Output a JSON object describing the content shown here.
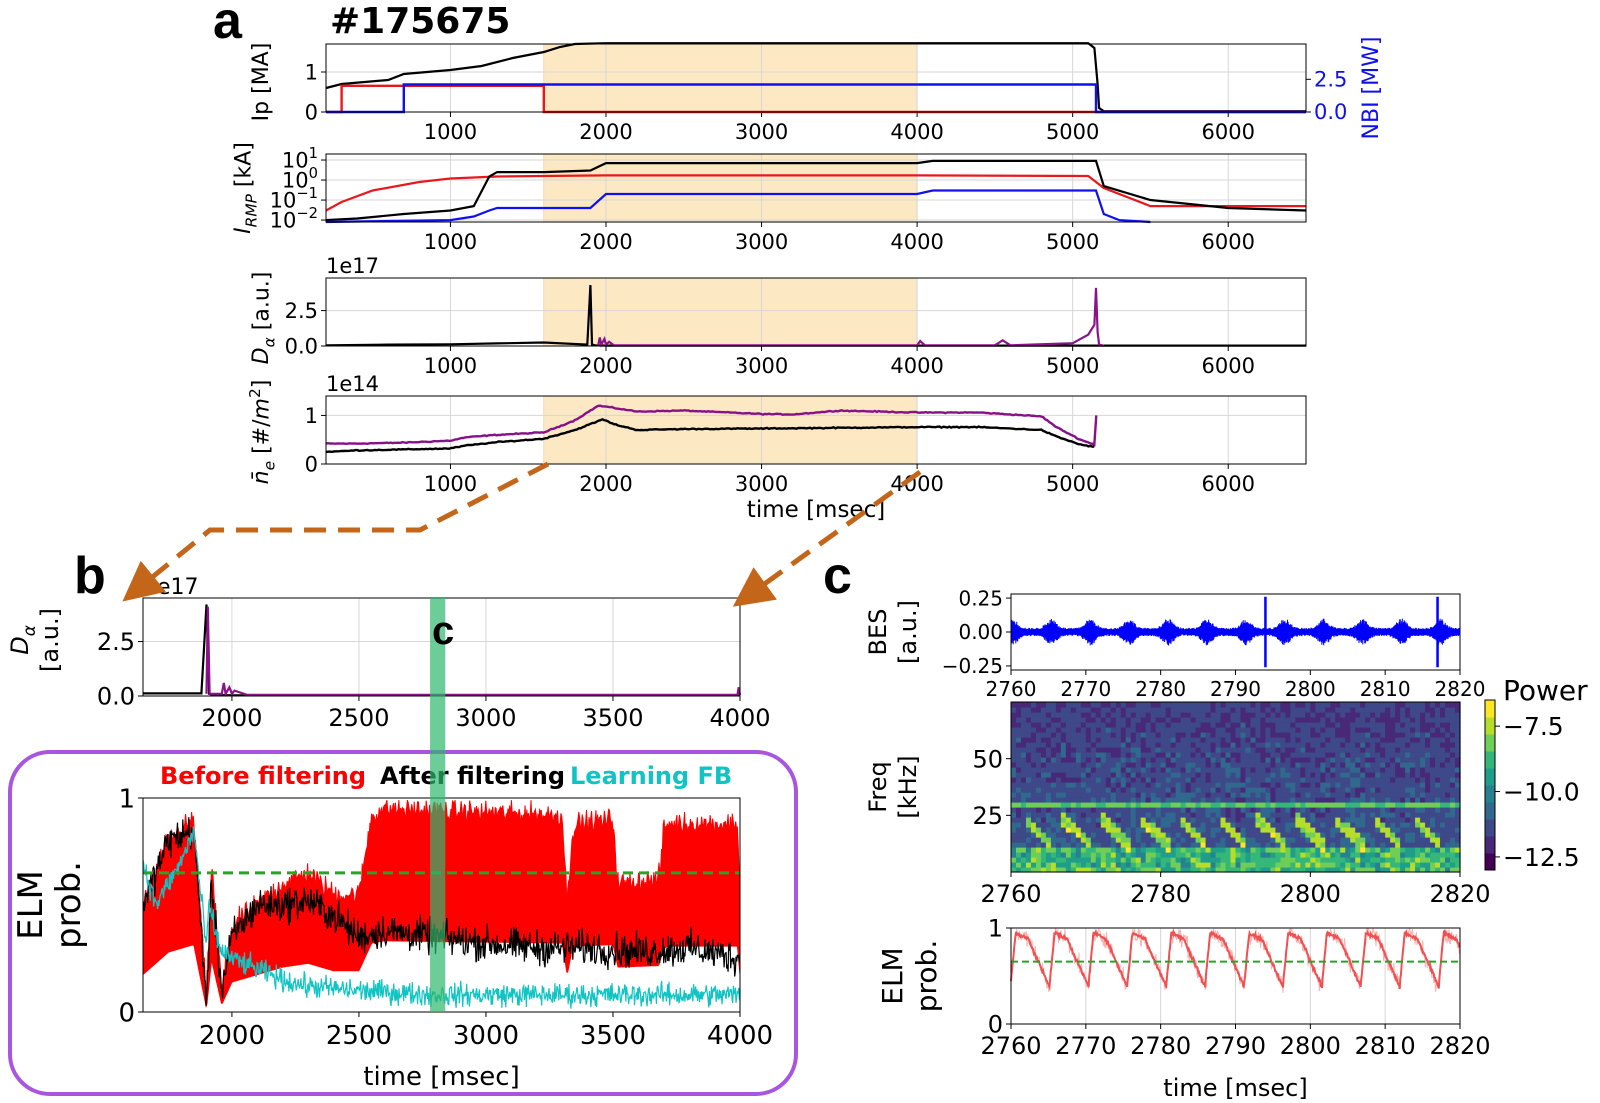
{
  "figure": {
    "shot_label": "#175675",
    "panel_letters": {
      "a": "a",
      "b": "b",
      "c": "c",
      "c_marker": "c"
    }
  },
  "colors": {
    "shade": "#fde8c4",
    "ip": "#000000",
    "nbi_red": "#e8191c",
    "nbi_blue": "#1010ee",
    "dalpha_black": "#000000",
    "dalpha_purple": "#8b128b",
    "ne_purple": "#881188",
    "before": "#ff0000",
    "after": "#000000",
    "learning": "#11c4c4",
    "threshold": "#27a427",
    "arrow": "#c4661a",
    "green_band": "#2eb86e",
    "frame_purple": "#a855e0",
    "bes": "#0000ff",
    "elm_c": "#ef5050"
  },
  "chart_data": [
    {
      "id": "a1",
      "type": "line",
      "ylabel": "Ip [MA]",
      "y2label": "NBI [MW]",
      "xlim": [
        200,
        6500
      ],
      "ylim": [
        0,
        1.7
      ],
      "y2lim": [
        0,
        5.2
      ],
      "xticks": [
        1000,
        2000,
        3000,
        4000,
        5000,
        6000
      ],
      "yticks": [
        {
          "value": 0,
          "label": "0"
        },
        {
          "value": 1,
          "label": "1"
        }
      ],
      "y2ticks": [
        {
          "value": 0,
          "label": "0.0"
        },
        {
          "value": 2.5,
          "label": "2.5"
        }
      ],
      "shaded_range": [
        1600,
        4000
      ],
      "grid": true,
      "series": [
        {
          "axis": "left",
          "color": "ip",
          "x": [
            200,
            300,
            600,
            700,
            1000,
            1200,
            1400,
            1600,
            1700,
            1800,
            2000,
            3000,
            4000,
            5000,
            5100,
            5140,
            5160,
            5170,
            5200,
            6500
          ],
          "y": [
            0.6,
            0.7,
            0.8,
            0.95,
            1.05,
            1.15,
            1.35,
            1.5,
            1.62,
            1.7,
            1.72,
            1.72,
            1.72,
            1.72,
            1.72,
            1.6,
            0.7,
            0.1,
            0.02,
            0.02
          ]
        },
        {
          "axis": "right",
          "color": "nbi_red",
          "x": [
            200,
            300,
            300,
            1600,
            1600,
            6500
          ],
          "y": [
            0,
            0,
            2.0,
            2.0,
            0,
            0
          ]
        },
        {
          "axis": "right",
          "color": "nbi_blue",
          "x": [
            200,
            700,
            700,
            5150,
            5150,
            6500
          ],
          "y": [
            0,
            0,
            2.1,
            2.1,
            0,
            0
          ]
        }
      ]
    },
    {
      "id": "a2",
      "type": "line",
      "ylabel": "I_RMP [kA]",
      "yscale": "log",
      "xlim": [
        200,
        6500
      ],
      "ylim": [
        0.008,
        20
      ],
      "xticks": [
        1000,
        2000,
        3000,
        4000,
        5000,
        6000
      ],
      "yticks": [
        {
          "value": 10,
          "label": "10^1"
        },
        {
          "value": 1,
          "label": "10^0"
        },
        {
          "value": 0.1,
          "label": "10^-1"
        },
        {
          "value": 0.01,
          "label": "10^-2"
        }
      ],
      "shaded_range": [
        1600,
        4000
      ],
      "grid": true,
      "series": [
        {
          "color": "nbi_red",
          "x": [
            200,
            300,
            500,
            800,
            1000,
            1300,
            1600,
            2000,
            3000,
            4000,
            5100,
            5200,
            5500,
            6500
          ],
          "y": [
            0.03,
            0.08,
            0.3,
            0.8,
            1.2,
            1.5,
            1.6,
            1.7,
            1.7,
            1.7,
            1.6,
            0.4,
            0.05,
            0.05
          ]
        },
        {
          "color": "ip",
          "x": [
            200,
            400,
            700,
            1000,
            1150,
            1250,
            1300,
            1600,
            1900,
            2000,
            4000,
            4100,
            5150,
            5200,
            5500,
            6000,
            6500
          ],
          "y": [
            0.01,
            0.012,
            0.02,
            0.03,
            0.05,
            1.5,
            2.5,
            2.5,
            3.0,
            7.0,
            7.0,
            9.0,
            9.0,
            0.5,
            0.1,
            0.04,
            0.03
          ]
        },
        {
          "color": "nbi_blue",
          "x": [
            200,
            600,
            1000,
            1150,
            1250,
            1300,
            1900,
            2000,
            4000,
            4100,
            5150,
            5200,
            5300,
            5500
          ],
          "y": [
            0.008,
            0.009,
            0.01,
            0.015,
            0.03,
            0.04,
            0.04,
            0.2,
            0.2,
            0.3,
            0.3,
            0.02,
            0.01,
            0.008
          ]
        }
      ]
    },
    {
      "id": "a3",
      "type": "line",
      "ylabel": "D_α [a.u.]",
      "offset_label": "1e17",
      "xlim": [
        200,
        6500
      ],
      "ylim": [
        0,
        4.8
      ],
      "xticks": [
        1000,
        2000,
        3000,
        4000,
        5000,
        6000
      ],
      "yticks": [
        {
          "value": 0,
          "label": "0.0"
        },
        {
          "value": 2.5,
          "label": "2.5"
        }
      ],
      "shaded_range": [
        1600,
        4000
      ],
      "grid": true,
      "series": [
        {
          "color": "dalpha_black",
          "x": [
            200,
            600,
            1000,
            1300,
            1600,
            1880,
            1900,
            1910,
            1930,
            2000,
            6500
          ],
          "y": [
            0.05,
            0.1,
            0.12,
            0.18,
            0.25,
            0.1,
            4.3,
            0.1,
            0.05,
            0.03,
            0.03
          ]
        },
        {
          "color": "dalpha_purple",
          "x": [
            1950,
            1960,
            1970,
            1990,
            2000,
            2020,
            2050,
            3500,
            4000,
            4020,
            4050,
            4500,
            4550,
            4600,
            5000,
            5100,
            5140,
            5150,
            5160,
            5170,
            5200
          ],
          "y": [
            0.05,
            0.6,
            0.1,
            0.5,
            0.1,
            0.3,
            0.05,
            0.05,
            0.05,
            0.35,
            0.05,
            0.05,
            0.4,
            0.05,
            0.2,
            0.8,
            1.5,
            4.1,
            1.0,
            0.1,
            0.02
          ]
        }
      ]
    },
    {
      "id": "a4",
      "type": "line",
      "ylabel": "n̄_e [#/m^2]",
      "offset_label": "1e14",
      "xlabel": "time [msec]",
      "xlim": [
        200,
        6500
      ],
      "ylim": [
        0,
        1.4
      ],
      "xticks": [
        1000,
        2000,
        3000,
        4000,
        5000,
        6000
      ],
      "yticks": [
        {
          "value": 0,
          "label": "0"
        },
        {
          "value": 1,
          "label": "1"
        }
      ],
      "shaded_range": [
        1600,
        4000
      ],
      "grid": true,
      "series": [
        {
          "color": "ne_purple",
          "x": [
            200,
            400,
            700,
            1000,
            1100,
            1300,
            1600,
            1800,
            1950,
            2000,
            2200,
            2500,
            3000,
            3200,
            3500,
            4000,
            4400,
            4800,
            4900,
            5050,
            5140,
            5150,
            5155,
            5160
          ],
          "y": [
            0.42,
            0.42,
            0.44,
            0.48,
            0.55,
            0.6,
            0.65,
            0.9,
            1.2,
            1.18,
            1.08,
            1.1,
            1.03,
            1.02,
            1.1,
            1.06,
            1.06,
            0.98,
            0.75,
            0.5,
            0.4,
            1.4,
            0.3,
            0
          ]
        },
        {
          "color": "ip",
          "x": [
            200,
            400,
            700,
            1000,
            1100,
            1300,
            1600,
            1800,
            1980,
            2050,
            2200,
            2500,
            3000,
            4000,
            4400,
            4800,
            4900,
            5050,
            5140
          ],
          "y": [
            0.25,
            0.28,
            0.3,
            0.32,
            0.38,
            0.45,
            0.52,
            0.7,
            0.92,
            0.82,
            0.7,
            0.72,
            0.73,
            0.76,
            0.76,
            0.7,
            0.56,
            0.4,
            0.35
          ]
        }
      ]
    },
    {
      "id": "b_top",
      "type": "line",
      "ylabel": "D_α [a.u.]",
      "offset_label": "1e17",
      "xlim": [
        1650,
        4000
      ],
      "ylim": [
        0,
        4.5
      ],
      "xticks": [
        2000,
        2500,
        3000,
        3500,
        4000
      ],
      "yticks": [
        {
          "value": 0,
          "label": "0.0"
        },
        {
          "value": 2.5,
          "label": "2.5"
        }
      ],
      "highlight_band": [
        2780,
        2840
      ],
      "grid": true,
      "series": [
        {
          "color": "dalpha_black",
          "x": [
            1650,
            1880,
            1900,
            1910,
            1925,
            2000,
            4000
          ],
          "y": [
            0.12,
            0.12,
            4.2,
            0.1,
            0.05,
            0.03,
            0.03
          ]
        },
        {
          "color": "dalpha_purple",
          "x": [
            1900,
            1905,
            1912,
            1960,
            1968,
            1975,
            1990,
            2000,
            2010,
            2060,
            3990,
            3995,
            4000
          ],
          "y": [
            0.1,
            4.1,
            0.1,
            0.1,
            0.6,
            0.1,
            0.4,
            0.1,
            0.25,
            0.05,
            0.05,
            0.4,
            0.05
          ]
        }
      ]
    },
    {
      "id": "b_bottom",
      "type": "line",
      "ylabel": "ELM prob.",
      "xlabel": "time [msec]",
      "legend": [
        "Before filtering",
        "After filtering",
        "Learning FB"
      ],
      "legend_position": "top",
      "xlim": [
        1650,
        4000
      ],
      "ylim": [
        0,
        1
      ],
      "xticks": [
        2000,
        2500,
        3000,
        3500,
        4000
      ],
      "yticks": [
        {
          "value": 0,
          "label": "0"
        },
        {
          "value": 1,
          "label": "1"
        }
      ],
      "threshold": 0.65,
      "highlight_band": [
        2780,
        2840
      ],
      "grid": false,
      "series": [
        {
          "name": "Before filtering",
          "color": "before",
          "x": [
            1650,
            1750,
            1850,
            1900,
            1920,
            1960,
            2000,
            2100,
            2150,
            2200,
            2300,
            2400,
            2500,
            2550,
            2600,
            3300,
            3320,
            3340,
            3360,
            3500,
            3520,
            3680,
            3700,
            3720,
            3990,
            4000
          ],
          "y": [
            0.5,
            0.8,
            0.9,
            0.05,
            0.7,
            0.1,
            0.4,
            0.5,
            0.55,
            0.6,
            0.65,
            0.55,
            0.55,
            0.92,
            0.95,
            0.92,
            0.5,
            0.85,
            0.88,
            0.9,
            0.6,
            0.62,
            0.85,
            0.88,
            0.88,
            0.5
          ]
        },
        {
          "name": "After filtering",
          "color": "after",
          "x": [
            1650,
            1750,
            1850,
            1900,
            1920,
            1960,
            2000,
            2100,
            2200,
            2300,
            2400,
            2500,
            2600,
            2800,
            3000,
            3200,
            3400,
            3600,
            3800,
            4000
          ],
          "y": [
            0.5,
            0.8,
            0.85,
            0.05,
            0.6,
            0.1,
            0.35,
            0.5,
            0.5,
            0.52,
            0.45,
            0.35,
            0.38,
            0.35,
            0.32,
            0.3,
            0.3,
            0.28,
            0.3,
            0.25
          ]
        },
        {
          "name": "Learning FB",
          "color": "learning",
          "x": [
            1650,
            1700,
            1750,
            1800,
            1850,
            1900,
            1910,
            1950,
            2000,
            2100,
            2200,
            2300,
            2500,
            2800,
            3200,
            3600,
            4000
          ],
          "y": [
            0.7,
            0.5,
            0.6,
            0.7,
            0.85,
            0.3,
            0.5,
            0.3,
            0.25,
            0.2,
            0.15,
            0.12,
            0.1,
            0.08,
            0.08,
            0.08,
            0.08
          ]
        }
      ]
    },
    {
      "id": "c_top",
      "type": "line",
      "ylabel": "BES [a.u.]",
      "xlim": [
        2760,
        2820
      ],
      "ylim": [
        -0.28,
        0.28
      ],
      "xticks": [
        2760,
        2770,
        2780,
        2790,
        2800,
        2810,
        2820
      ],
      "yticks": [
        {
          "value": 0.25,
          "label": "0.25"
        },
        {
          "value": 0,
          "label": "0.00"
        },
        {
          "value": -0.25,
          "label": "−0.25"
        }
      ],
      "burst_times": [
        2760.2,
        2765.4,
        2770.6,
        2775.8,
        2781.0,
        2786.2,
        2791.4,
        2796.6,
        2801.8,
        2807.0,
        2812.2,
        2817.4
      ],
      "spike_times": [
        2794.0,
        2817.0
      ],
      "grid": false,
      "series": [
        {
          "color": "bes"
        }
      ]
    },
    {
      "id": "c_mid",
      "type": "heatmap",
      "ylabel": "Freq [kHz]",
      "colorbar_label": "Power",
      "xlim": [
        2760,
        2820
      ],
      "ylim": [
        0,
        75
      ],
      "clim": [
        -13,
        -6.5
      ],
      "xticks": [
        2760,
        2780,
        2800,
        2820
      ],
      "yticks": [
        {
          "value": 25,
          "label": "25"
        },
        {
          "value": 50,
          "label": "50"
        }
      ],
      "cticks": [
        {
          "value": -7.5,
          "label": "−7.5"
        },
        {
          "value": -10,
          "label": "−10.0"
        },
        {
          "value": -12.5,
          "label": "−12.5"
        }
      ],
      "continuous_line_khz": 30,
      "chirp_times": [
        2763.2,
        2768.4,
        2773.6,
        2778.8,
        2784.0,
        2789.2,
        2794.4,
        2799.6,
        2804.8,
        2810.0,
        2815.2
      ]
    },
    {
      "id": "c_bottom",
      "type": "line",
      "ylabel": "ELM prob.",
      "xlabel": "time [msec]",
      "xlim": [
        2760,
        2820
      ],
      "ylim": [
        0,
        1
      ],
      "xticks": [
        2760,
        2770,
        2780,
        2790,
        2800,
        2810,
        2820
      ],
      "yticks": [
        {
          "value": 0,
          "label": "0"
        },
        {
          "value": 1,
          "label": "1"
        }
      ],
      "threshold": 0.65,
      "cycle_starts": [
        2760.0,
        2765.2,
        2770.4,
        2775.6,
        2780.8,
        2786.0,
        2791.2,
        2796.4,
        2801.6,
        2806.8,
        2812.0,
        2817.2
      ],
      "grid": true,
      "series": [
        {
          "color": "elm_c"
        }
      ]
    }
  ]
}
